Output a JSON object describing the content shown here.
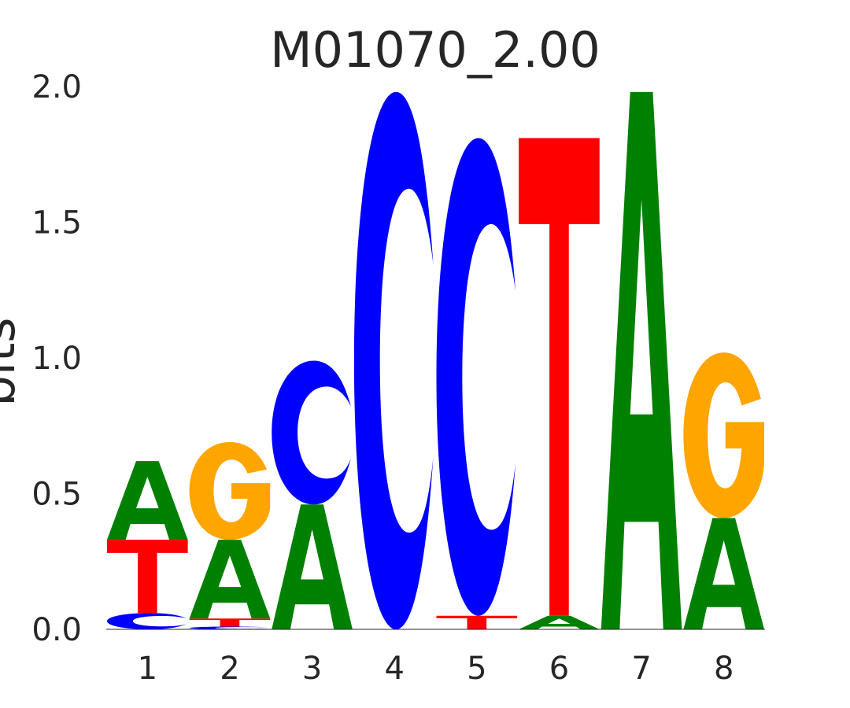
{
  "chart_data": {
    "type": "sequence-logo",
    "title": "M01070_2.00",
    "ylabel": "bits",
    "xlabel": "",
    "ylim": [
      0,
      2.0
    ],
    "yticks": [
      "0.0",
      "0.5",
      "1.0",
      "1.5",
      "2.0"
    ],
    "xticks": [
      "1",
      "2",
      "3",
      "4",
      "5",
      "6",
      "7",
      "8"
    ],
    "colors": {
      "A": "#008000",
      "C": "#0000ff",
      "G": "#ffa500",
      "T": "#ff0000"
    },
    "positions": [
      {
        "pos": "1",
        "letters": [
          {
            "base": "C",
            "bits": 0.06
          },
          {
            "base": "T",
            "bits": 0.27
          },
          {
            "base": "A",
            "bits": 0.29
          }
        ]
      },
      {
        "pos": "2",
        "letters": [
          {
            "base": "C",
            "bits": 0.01
          },
          {
            "base": "T",
            "bits": 0.03
          },
          {
            "base": "A",
            "bits": 0.29
          },
          {
            "base": "G",
            "bits": 0.36
          }
        ]
      },
      {
        "pos": "3",
        "letters": [
          {
            "base": "A",
            "bits": 0.46
          },
          {
            "base": "C",
            "bits": 0.53
          }
        ]
      },
      {
        "pos": "4",
        "letters": [
          {
            "base": "C",
            "bits": 1.98
          }
        ]
      },
      {
        "pos": "5",
        "letters": [
          {
            "base": "T",
            "bits": 0.05
          },
          {
            "base": "C",
            "bits": 1.76
          }
        ]
      },
      {
        "pos": "6",
        "letters": [
          {
            "base": "A",
            "bits": 0.05
          },
          {
            "base": "T",
            "bits": 1.76
          }
        ]
      },
      {
        "pos": "7",
        "letters": [
          {
            "base": "A",
            "bits": 1.98
          }
        ]
      },
      {
        "pos": "8",
        "letters": [
          {
            "base": "A",
            "bits": 0.41
          },
          {
            "base": "G",
            "bits": 0.61
          }
        ]
      }
    ]
  }
}
